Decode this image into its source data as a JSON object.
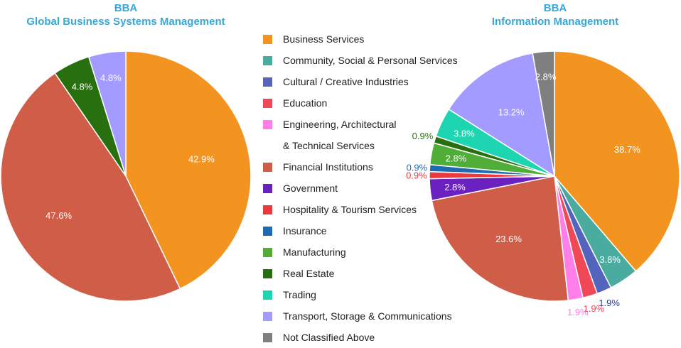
{
  "categories": [
    {
      "name": "Business Services",
      "color": "#f39421"
    },
    {
      "name": "Community, Social & Personal Services",
      "color": "#4aab9f"
    },
    {
      "name": "Cultural / Creative Industries",
      "color": "#5464bd"
    },
    {
      "name": "Education",
      "color": "#f04856"
    },
    {
      "name": "Engineering, Architectural",
      "name_line2": "& Technical Services",
      "color": "#ff7ee7"
    },
    {
      "name": "Financial Institutions",
      "color": "#d05d47"
    },
    {
      "name": "Government",
      "color": "#6b21c0"
    },
    {
      "name": "Hospitality & Tourism Services",
      "color": "#ea3a40"
    },
    {
      "name": "Insurance",
      "color": "#1f6bb3"
    },
    {
      "name": "Manufacturing",
      "color": "#4fad38"
    },
    {
      "name": "Real Estate",
      "color": "#28700f"
    },
    {
      "name": "Trading",
      "color": "#1ed5b2"
    },
    {
      "name": "Transport, Storage & Communications",
      "color": "#a39bff"
    },
    {
      "name": "Not Classified Above",
      "color": "#7f7f7f"
    }
  ],
  "chart_data": [
    {
      "type": "pie",
      "title_line1": "BBA",
      "title_line2": "Global Business Systems Management",
      "slices": [
        {
          "category": "Business Services",
          "value": 42.9,
          "label": "42.9%"
        },
        {
          "category": "Financial Institutions",
          "value": 47.6,
          "label": "47.6%"
        },
        {
          "category": "Real Estate",
          "value": 4.8,
          "label": "4.8%"
        },
        {
          "category": "Transport, Storage & Communications",
          "value": 4.8,
          "label": "4.8%"
        }
      ]
    },
    {
      "type": "pie",
      "title_line1": "BBA",
      "title_line2": "Information Management",
      "slices": [
        {
          "category": "Business Services",
          "value": 38.7,
          "label": "38.7%"
        },
        {
          "category": "Community, Social & Personal Services",
          "value": 3.8,
          "label": "3.8%"
        },
        {
          "category": "Cultural / Creative Industries",
          "value": 1.9,
          "label": "1.9%"
        },
        {
          "category": "Education",
          "value": 1.9,
          "label": "1.9%"
        },
        {
          "category": "Engineering, Architectural & Technical Services",
          "value": 1.9,
          "label": "1.9%"
        },
        {
          "category": "Financial Institutions",
          "value": 23.6,
          "label": "23.6%"
        },
        {
          "category": "Government",
          "value": 2.8,
          "label": "2.8%"
        },
        {
          "category": "Hospitality & Tourism Services",
          "value": 0.9,
          "label": "0.9%"
        },
        {
          "category": "Insurance",
          "value": 0.9,
          "label": "0.9%"
        },
        {
          "category": "Manufacturing",
          "value": 2.8,
          "label": "2.8%"
        },
        {
          "category": "Real Estate",
          "value": 0.9,
          "label": "0.9%"
        },
        {
          "category": "Trading",
          "value": 3.8,
          "label": "3.8%"
        },
        {
          "category": "Transport, Storage & Communications",
          "value": 13.2,
          "label": "13.2%"
        },
        {
          "category": "Not Classified Above",
          "value": 2.8,
          "label": "2.8%"
        }
      ]
    }
  ]
}
